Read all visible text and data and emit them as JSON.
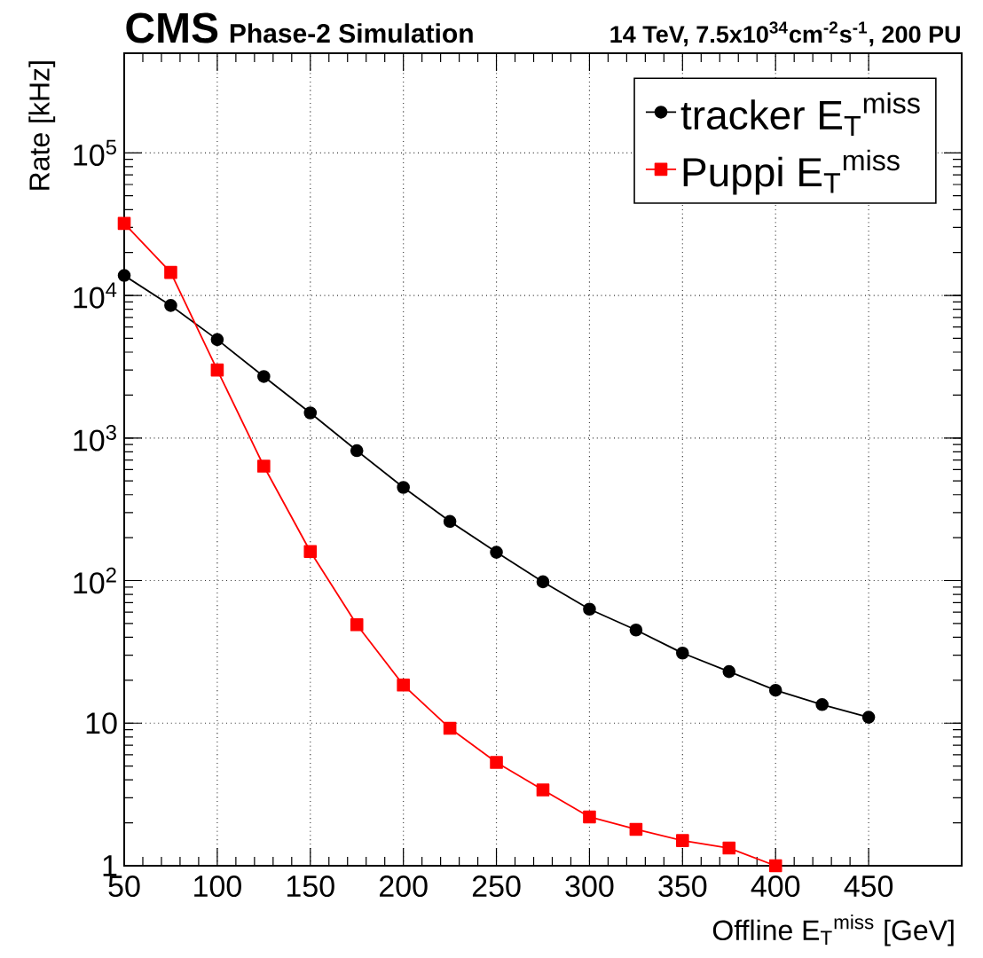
{
  "chart_data": {
    "type": "line",
    "title": "CMS",
    "subtitle": "Phase-2 Simulation",
    "annotations": [
      "14 TeV, 7.5x10$^{34}$cm$^{-2}$s$^{-1}$, 200 PU"
    ],
    "xlabel": "Offline E$_{T}$$^{miss}$ [GeV]",
    "ylabel": "Rate [kHz]",
    "log": "y",
    "grid": true,
    "legend": "top right",
    "xlim": [
      50,
      500
    ],
    "xticks": [
      50,
      100,
      150,
      200,
      250,
      300,
      350,
      400,
      450
    ],
    "ylim": [
      1,
      500000
    ],
    "yticks": [
      1,
      10,
      {
        "value": 100,
        "label": "10$^{2}$"
      },
      {
        "value": 1000,
        "label": "10$^{3}$"
      },
      {
        "value": 10000,
        "label": "10$^{4}$"
      },
      {
        "value": 100000,
        "label": "10$^{5}$"
      }
    ],
    "series": [
      {
        "name": "tracker E$_{T}$$^{miss}$",
        "color": "#000000",
        "marker": "circle",
        "x": [
          50,
          75,
          100,
          125,
          150,
          175,
          200,
          225,
          250,
          275,
          300,
          325,
          350,
          375,
          400,
          425,
          450
        ],
        "values": [
          13800,
          8500,
          4900,
          2700,
          1500,
          815,
          450,
          260,
          158,
          98,
          63,
          45,
          31,
          23,
          17,
          13.5,
          11
        ]
      },
      {
        "name": "Puppi E$_{T}$$^{miss}$",
        "color": "#ff0000",
        "marker": "square",
        "x": [
          50,
          75,
          100,
          125,
          150,
          175,
          200,
          225,
          250,
          275,
          300,
          325,
          350,
          375,
          400
        ],
        "values": [
          32000,
          14500,
          3000,
          635,
          160,
          49,
          18.5,
          9.2,
          5.3,
          3.4,
          2.2,
          1.8,
          1.5,
          1.33,
          1.0
        ]
      }
    ]
  }
}
